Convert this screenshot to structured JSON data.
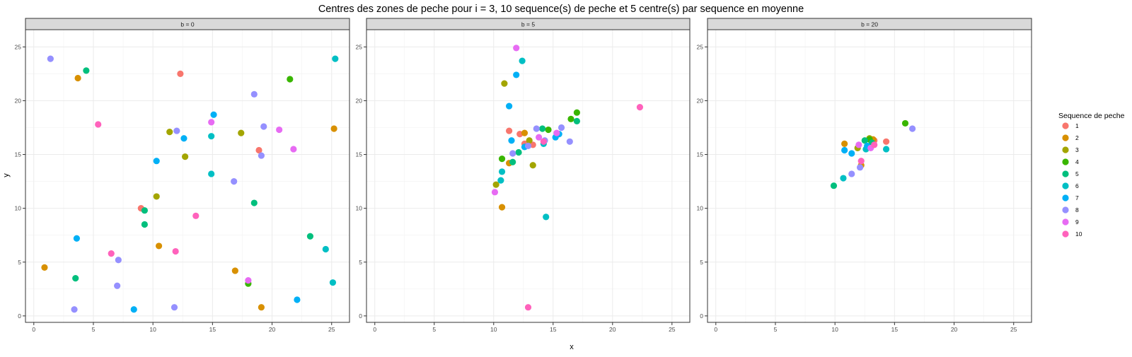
{
  "chart_data": {
    "type": "scatter",
    "title": "Centres des zones de peche pour i = 3, 10 sequence(s) de peche et 5 centre(s) par sequence en moyenne",
    "xlabel": "x",
    "ylabel": "y",
    "xlim": [
      -0.7,
      26.5
    ],
    "ylim": [
      -0.6,
      26.6
    ],
    "x_ticks": [
      0,
      5,
      10,
      15,
      20,
      25
    ],
    "y_ticks": [
      0,
      5,
      10,
      15,
      20,
      25
    ],
    "grid": true,
    "legend": {
      "title": "Sequence de peche",
      "placement": "right",
      "entries": [
        "1",
        "2",
        "3",
        "4",
        "5",
        "6",
        "7",
        "8",
        "9",
        "10"
      ]
    },
    "colors": {
      "1": "#F8766D",
      "2": "#D89000",
      "3": "#A3A500",
      "4": "#39B600",
      "5": "#00BF7D",
      "6": "#00BFC4",
      "7": "#00B0F6",
      "8": "#9590FF",
      "9": "#E76BF3",
      "10": "#FF62BC"
    },
    "panels": [
      {
        "label": "b = 0",
        "points": [
          {
            "s": 1,
            "x": 12.3,
            "y": 22.5
          },
          {
            "s": 1,
            "x": 18.9,
            "y": 15.4
          },
          {
            "s": 1,
            "x": 9.0,
            "y": 10.0
          },
          {
            "s": 2,
            "x": 3.7,
            "y": 22.1
          },
          {
            "s": 2,
            "x": 25.2,
            "y": 17.4
          },
          {
            "s": 2,
            "x": 0.9,
            "y": 4.5
          },
          {
            "s": 2,
            "x": 10.5,
            "y": 6.5
          },
          {
            "s": 2,
            "x": 16.9,
            "y": 4.2
          },
          {
            "s": 2,
            "x": 19.1,
            "y": 0.8
          },
          {
            "s": 3,
            "x": 11.4,
            "y": 17.1
          },
          {
            "s": 3,
            "x": 17.4,
            "y": 17.0
          },
          {
            "s": 3,
            "x": 12.7,
            "y": 14.8
          },
          {
            "s": 3,
            "x": 10.3,
            "y": 11.1
          },
          {
            "s": 4,
            "x": 21.5,
            "y": 22.0
          },
          {
            "s": 4,
            "x": 18.0,
            "y": 3.0
          },
          {
            "s": 5,
            "x": 4.4,
            "y": 22.8
          },
          {
            "s": 5,
            "x": 9.3,
            "y": 9.8
          },
          {
            "s": 5,
            "x": 9.3,
            "y": 8.5
          },
          {
            "s": 5,
            "x": 18.5,
            "y": 10.5
          },
          {
            "s": 5,
            "x": 23.2,
            "y": 7.4
          },
          {
            "s": 5,
            "x": 3.5,
            "y": 3.5
          },
          {
            "s": 6,
            "x": 25.3,
            "y": 23.9
          },
          {
            "s": 6,
            "x": 14.9,
            "y": 16.7
          },
          {
            "s": 6,
            "x": 14.9,
            "y": 13.2
          },
          {
            "s": 6,
            "x": 24.5,
            "y": 6.2
          },
          {
            "s": 6,
            "x": 25.1,
            "y": 3.1
          },
          {
            "s": 7,
            "x": 15.1,
            "y": 18.7
          },
          {
            "s": 7,
            "x": 12.6,
            "y": 16.5
          },
          {
            "s": 7,
            "x": 10.3,
            "y": 14.4
          },
          {
            "s": 7,
            "x": 3.6,
            "y": 7.2
          },
          {
            "s": 7,
            "x": 8.4,
            "y": 0.6
          },
          {
            "s": 7,
            "x": 22.1,
            "y": 1.5
          },
          {
            "s": 8,
            "x": 1.4,
            "y": 23.9
          },
          {
            "s": 8,
            "x": 18.5,
            "y": 20.6
          },
          {
            "s": 8,
            "x": 12.0,
            "y": 17.2
          },
          {
            "s": 8,
            "x": 19.3,
            "y": 17.6
          },
          {
            "s": 8,
            "x": 19.1,
            "y": 14.9
          },
          {
            "s": 8,
            "x": 16.8,
            "y": 12.5
          },
          {
            "s": 8,
            "x": 7.1,
            "y": 5.2
          },
          {
            "s": 8,
            "x": 7.0,
            "y": 2.8
          },
          {
            "s": 8,
            "x": 3.4,
            "y": 0.6
          },
          {
            "s": 8,
            "x": 11.8,
            "y": 0.8
          },
          {
            "s": 9,
            "x": 14.9,
            "y": 18.0
          },
          {
            "s": 9,
            "x": 20.6,
            "y": 17.3
          },
          {
            "s": 9,
            "x": 21.8,
            "y": 15.5
          },
          {
            "s": 9,
            "x": 18.0,
            "y": 3.3
          },
          {
            "s": 10,
            "x": 5.4,
            "y": 17.8
          },
          {
            "s": 10,
            "x": 13.6,
            "y": 9.3
          },
          {
            "s": 10,
            "x": 6.5,
            "y": 5.8
          },
          {
            "s": 10,
            "x": 11.9,
            "y": 6.0
          }
        ]
      },
      {
        "label": "b = 5",
        "points": [
          {
            "s": 1,
            "x": 11.3,
            "y": 17.2
          },
          {
            "s": 1,
            "x": 12.2,
            "y": 16.9
          },
          {
            "s": 1,
            "x": 12.6,
            "y": 16.0
          },
          {
            "s": 1,
            "x": 13.3,
            "y": 15.9
          },
          {
            "s": 2,
            "x": 12.6,
            "y": 17.0
          },
          {
            "s": 2,
            "x": 11.3,
            "y": 14.2
          },
          {
            "s": 2,
            "x": 10.7,
            "y": 10.1
          },
          {
            "s": 3,
            "x": 10.9,
            "y": 21.6
          },
          {
            "s": 3,
            "x": 13.0,
            "y": 16.3
          },
          {
            "s": 3,
            "x": 13.3,
            "y": 14.0
          },
          {
            "s": 3,
            "x": 10.2,
            "y": 12.2
          },
          {
            "s": 4,
            "x": 14.6,
            "y": 17.3
          },
          {
            "s": 4,
            "x": 16.5,
            "y": 18.3
          },
          {
            "s": 4,
            "x": 17.0,
            "y": 18.9
          },
          {
            "s": 4,
            "x": 10.7,
            "y": 14.6
          },
          {
            "s": 5,
            "x": 14.1,
            "y": 17.4
          },
          {
            "s": 5,
            "x": 17.0,
            "y": 18.1
          },
          {
            "s": 5,
            "x": 12.1,
            "y": 15.2
          },
          {
            "s": 5,
            "x": 11.6,
            "y": 14.3
          },
          {
            "s": 6,
            "x": 12.4,
            "y": 23.7
          },
          {
            "s": 6,
            "x": 14.2,
            "y": 16.0
          },
          {
            "s": 6,
            "x": 10.7,
            "y": 13.4
          },
          {
            "s": 6,
            "x": 10.6,
            "y": 12.6
          },
          {
            "s": 6,
            "x": 14.4,
            "y": 9.2
          },
          {
            "s": 7,
            "x": 11.9,
            "y": 22.4
          },
          {
            "s": 7,
            "x": 11.3,
            "y": 19.5
          },
          {
            "s": 7,
            "x": 11.5,
            "y": 16.3
          },
          {
            "s": 7,
            "x": 15.5,
            "y": 16.9
          },
          {
            "s": 7,
            "x": 15.2,
            "y": 16.6
          },
          {
            "s": 7,
            "x": 12.6,
            "y": 15.7
          },
          {
            "s": 8,
            "x": 13.6,
            "y": 17.4
          },
          {
            "s": 8,
            "x": 15.7,
            "y": 17.5
          },
          {
            "s": 8,
            "x": 14.3,
            "y": 16.3
          },
          {
            "s": 8,
            "x": 16.4,
            "y": 16.2
          },
          {
            "s": 8,
            "x": 11.6,
            "y": 15.1
          },
          {
            "s": 8,
            "x": 12.9,
            "y": 15.8
          },
          {
            "s": 9,
            "x": 11.9,
            "y": 24.9
          },
          {
            "s": 9,
            "x": 13.8,
            "y": 16.6
          },
          {
            "s": 9,
            "x": 15.3,
            "y": 17.0
          },
          {
            "s": 9,
            "x": 10.1,
            "y": 11.5
          },
          {
            "s": 10,
            "x": 22.3,
            "y": 19.4
          },
          {
            "s": 10,
            "x": 14.2,
            "y": 16.2
          },
          {
            "s": 10,
            "x": 12.9,
            "y": 0.8
          }
        ]
      },
      {
        "label": "b = 20",
        "points": [
          {
            "s": 1,
            "x": 14.3,
            "y": 16.2
          },
          {
            "s": 1,
            "x": 13.3,
            "y": 16.3
          },
          {
            "s": 2,
            "x": 10.8,
            "y": 16.0
          },
          {
            "s": 2,
            "x": 13.2,
            "y": 16.4
          },
          {
            "s": 2,
            "x": 12.2,
            "y": 14.0
          },
          {
            "s": 3,
            "x": 11.9,
            "y": 15.6
          },
          {
            "s": 3,
            "x": 12.9,
            "y": 16.5
          },
          {
            "s": 4,
            "x": 15.9,
            "y": 17.9
          },
          {
            "s": 4,
            "x": 12.9,
            "y": 16.4
          },
          {
            "s": 5,
            "x": 12.5,
            "y": 16.3
          },
          {
            "s": 5,
            "x": 13.1,
            "y": 16.1
          },
          {
            "s": 5,
            "x": 9.9,
            "y": 12.1
          },
          {
            "s": 6,
            "x": 14.3,
            "y": 15.5
          },
          {
            "s": 6,
            "x": 12.6,
            "y": 15.5
          },
          {
            "s": 6,
            "x": 10.7,
            "y": 12.8
          },
          {
            "s": 7,
            "x": 11.4,
            "y": 15.1
          },
          {
            "s": 7,
            "x": 12.7,
            "y": 15.8
          },
          {
            "s": 7,
            "x": 10.8,
            "y": 15.4
          },
          {
            "s": 8,
            "x": 16.5,
            "y": 17.4
          },
          {
            "s": 8,
            "x": 11.4,
            "y": 13.2
          },
          {
            "s": 8,
            "x": 12.1,
            "y": 13.8
          },
          {
            "s": 9,
            "x": 12.0,
            "y": 15.9
          },
          {
            "s": 9,
            "x": 13.0,
            "y": 15.6
          },
          {
            "s": 10,
            "x": 12.2,
            "y": 14.4
          },
          {
            "s": 10,
            "x": 13.3,
            "y": 15.9
          }
        ]
      }
    ]
  }
}
